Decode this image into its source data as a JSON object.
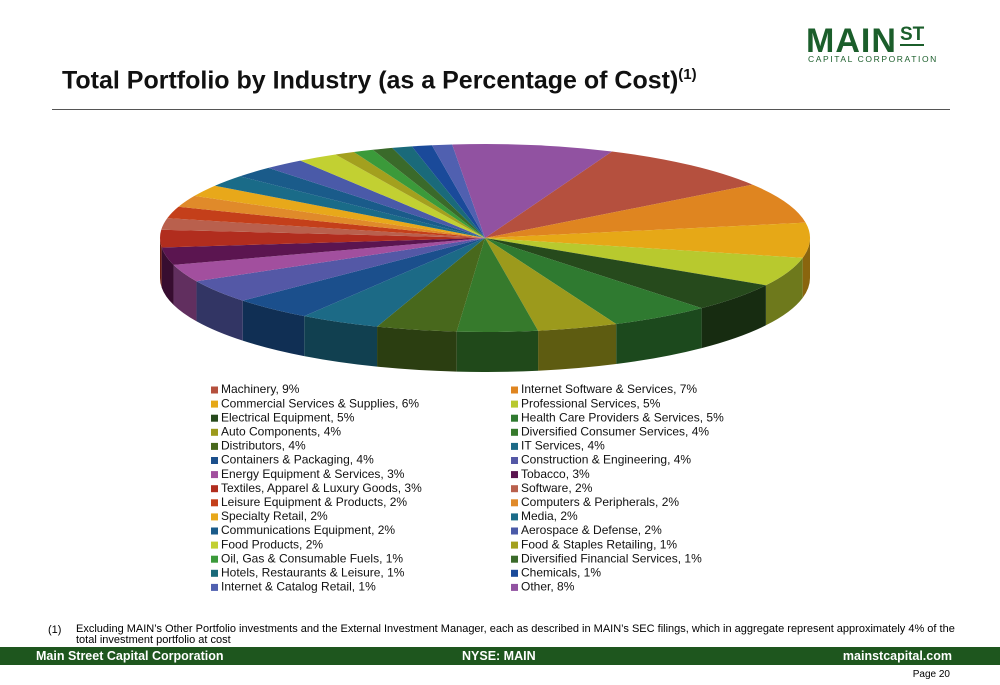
{
  "header": {
    "logo_main": "MAIN",
    "logo_st": "ST",
    "logo_sub": "CAPITAL CORPORATION",
    "title": "Total Portfolio by Industry (as a Percentage of Cost)",
    "title_note": "(1)"
  },
  "chart_data": {
    "type": "pie",
    "categories": [
      "Machinery, 9%",
      "Internet Software & Services, 7%",
      "Commercial Services & Supplies, 6%",
      "Professional Services, 5%",
      "Electrical Equipment, 5%",
      "Health Care Providers & Services, 5%",
      "Auto Components, 4%",
      "Diversified Consumer Services, 4%",
      "Distributors, 4%",
      "IT Services, 4%",
      "Containers & Packaging, 4%",
      "Construction & Engineering, 4%",
      "Energy Equipment & Services, 3%",
      "Tobacco, 3%",
      "Textiles, Apparel & Luxury Goods, 3%",
      "Software, 2%",
      "Leisure Equipment & Products, 2%",
      "Computers & Peripherals, 2%",
      "Specialty Retail, 2%",
      "Media, 2%",
      "Communications Equipment, 2%",
      "Aerospace & Defense, 2%",
      "Food Products, 2%",
      "Food & Staples Retailing, 1%",
      "Oil, Gas & Consumable Fuels, 1%",
      "Diversified Financial Services, 1%",
      "Hotels, Restaurants & Leisure, 1%",
      "Chemicals, 1%",
      "Internet & Catalog Retail, 1%",
      "Other, 8%"
    ],
    "values": [
      9,
      7,
      6,
      5,
      5,
      5,
      4,
      4,
      4,
      4,
      4,
      4,
      3,
      3,
      3,
      2,
      2,
      2,
      2,
      2,
      2,
      2,
      2,
      1,
      1,
      1,
      1,
      1,
      1,
      8
    ],
    "colors": [
      "#b5503e",
      "#df8520",
      "#e6a817",
      "#b8c92e",
      "#264a1c",
      "#2f7a30",
      "#9c9a1c",
      "#367a2c",
      "#48681c",
      "#1c6a86",
      "#1b4f8c",
      "#5458a6",
      "#a24f9e",
      "#5b1550",
      "#b12d1e",
      "#b9604d",
      "#c43f1a",
      "#e08a2a",
      "#e8a81a",
      "#1a6b88",
      "#1a5b8a",
      "#4a5aa8",
      "#c2d032",
      "#a3a01e",
      "#3b9a3a",
      "#3a6a2a",
      "#1a6a7a",
      "#1a4a9a",
      "#5060b0",
      "#9152a1"
    ]
  },
  "footnote": {
    "marker": "(1)",
    "text": "Excluding MAIN’s Other Portfolio investments and the External Investment Manager, each as described in MAIN’s SEC filings, which in aggregate represent approximately 4% of the total investment portfolio at cost"
  },
  "footer": {
    "left": "Main Street Capital Corporation",
    "center": "NYSE: MAIN",
    "right": "mainstcapital.com",
    "page": "Page  20"
  }
}
